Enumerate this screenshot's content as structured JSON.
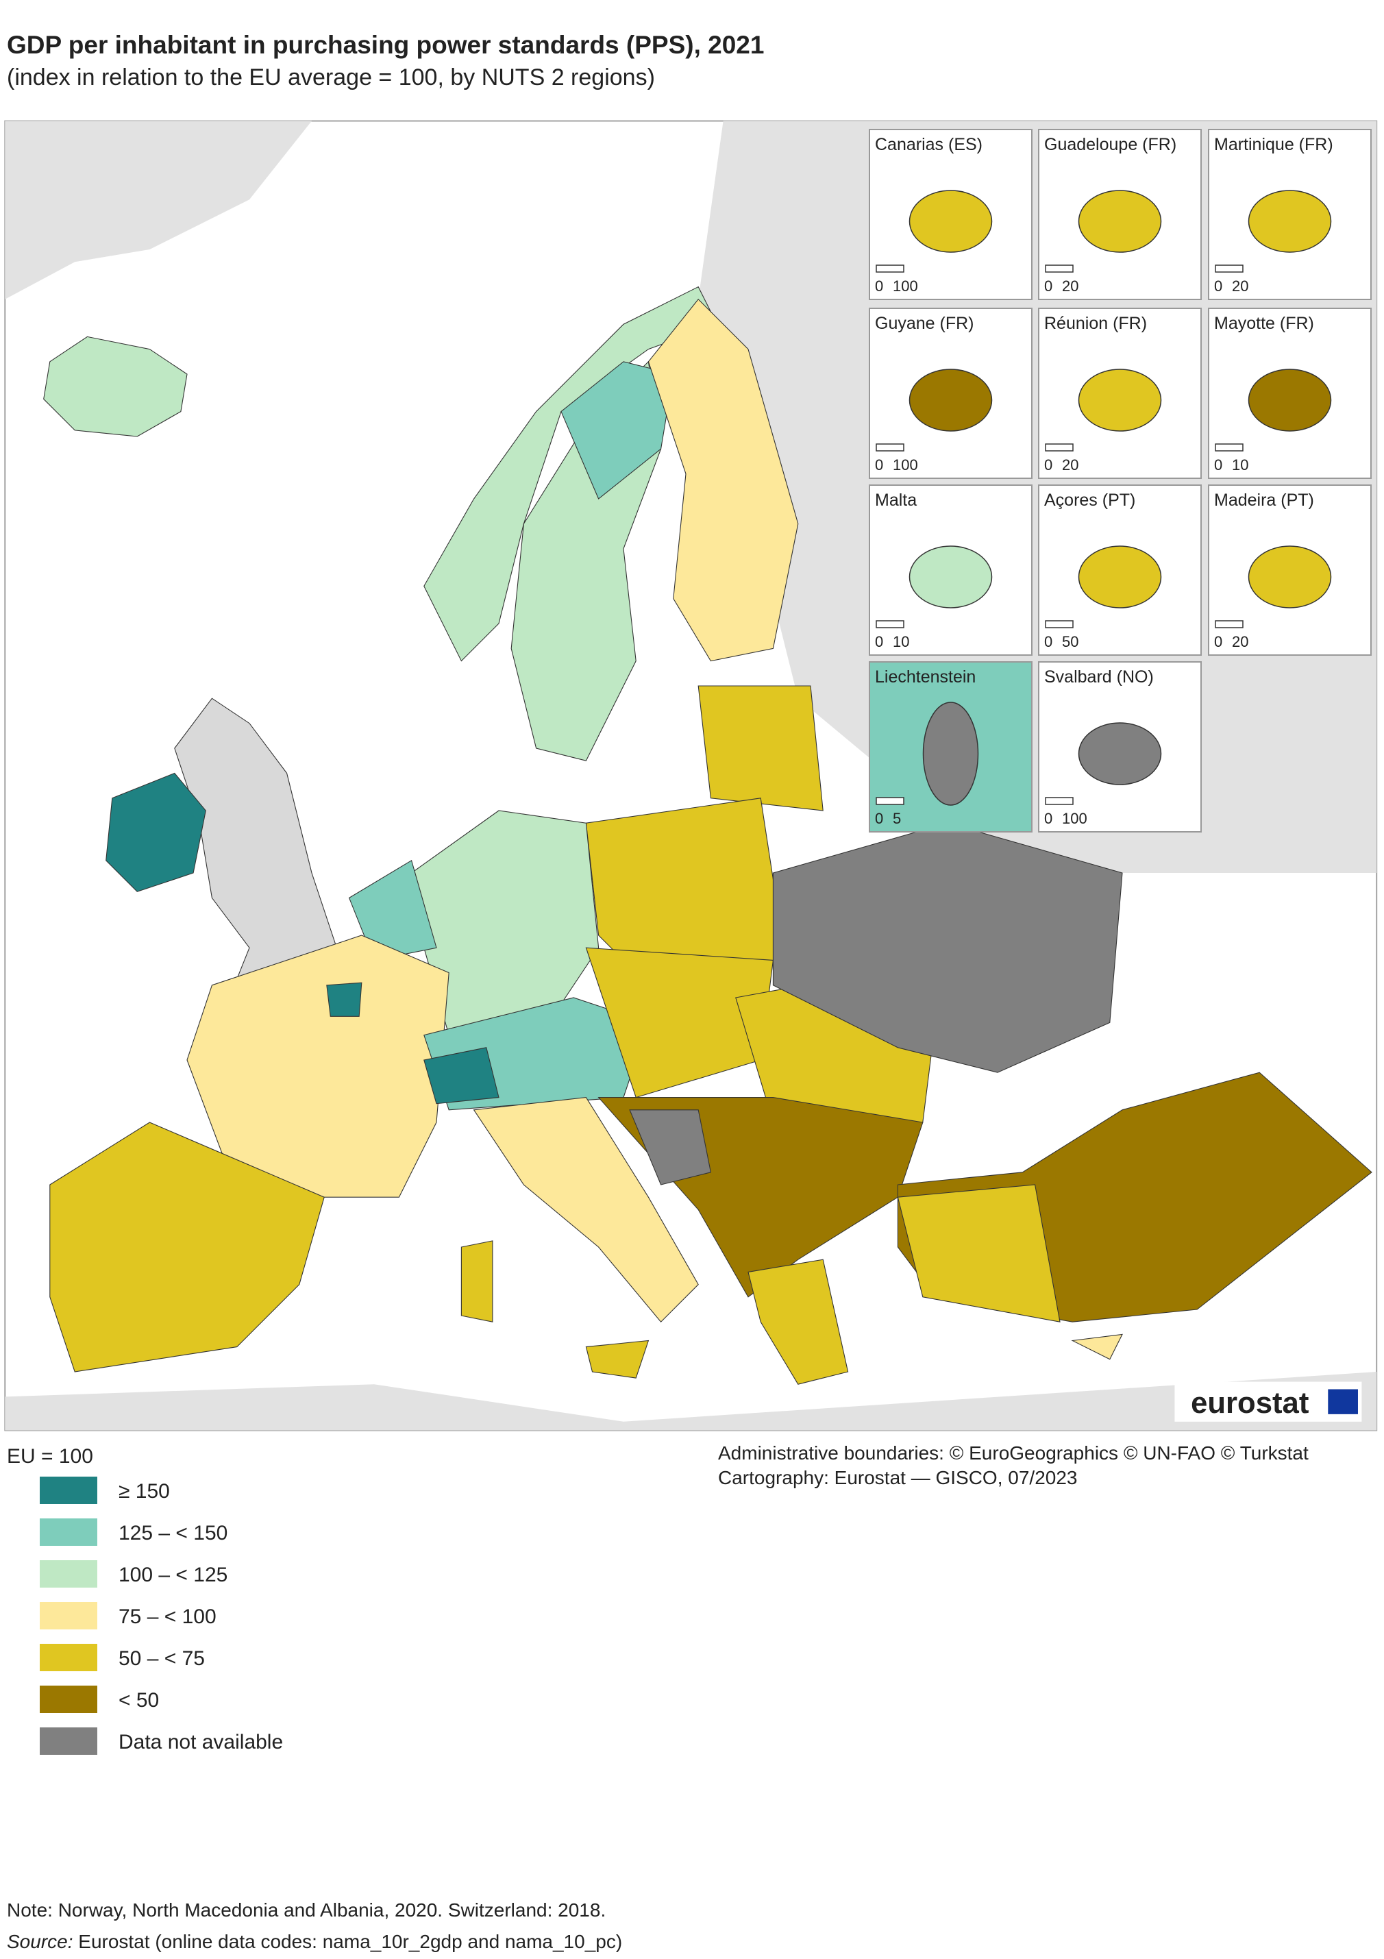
{
  "header": {
    "title": "GDP per inhabitant in purchasing power standards (PPS), 2021",
    "subtitle": "(index in relation to the EU average = 100, by NUTS 2 regions)"
  },
  "insets": [
    {
      "name": "Canarias (ES)",
      "scale": [
        "0",
        "100"
      ],
      "color": "#e0c621"
    },
    {
      "name": "Guadeloupe (FR)",
      "scale": [
        "0",
        "20"
      ],
      "color": "#e0c621"
    },
    {
      "name": "Martinique (FR)",
      "scale": [
        "0",
        "20"
      ],
      "color": "#e0c621"
    },
    {
      "name": "Guyane (FR)",
      "scale": [
        "0",
        "100"
      ],
      "color": "#9b7800"
    },
    {
      "name": "Réunion (FR)",
      "scale": [
        "0",
        "20"
      ],
      "color": "#e0c621"
    },
    {
      "name": "Mayotte (FR)",
      "scale": [
        "0",
        "10"
      ],
      "color": "#9b7800"
    },
    {
      "name": "Malta",
      "scale": [
        "0",
        "10"
      ],
      "color": "#bfe8c4"
    },
    {
      "name": "Açores (PT)",
      "scale": [
        "0",
        "50"
      ],
      "color": "#e0c621"
    },
    {
      "name": "Madeira (PT)",
      "scale": [
        "0",
        "20"
      ],
      "color": "#e0c621"
    },
    {
      "name": "Liechtenstein",
      "scale": [
        "0",
        "5"
      ],
      "color": "#808080"
    },
    {
      "name": "Svalbard (NO)",
      "scale": [
        "0",
        "100"
      ],
      "color": "#808080"
    }
  ],
  "logo": "eurostat",
  "legend": {
    "title": "EU = 100",
    "items": [
      {
        "label": "≥ 150",
        "color": "#1f8282"
      },
      {
        "label": "125 – < 150",
        "color": "#7ecdbb"
      },
      {
        "label": "100 – < 125",
        "color": "#bfe8c4"
      },
      {
        "label": "75 – < 100",
        "color": "#fde89a"
      },
      {
        "label": "50 – < 75",
        "color": "#e0c621"
      },
      {
        "label": "< 50",
        "color": "#9b7800"
      },
      {
        "label": "Data not available",
        "color": "#808080"
      }
    ]
  },
  "credits": [
    "Administrative boundaries: © EuroGeographics © UN-FAO © Turkstat",
    "Cartography: Eurostat — GISCO, 07/2023"
  ],
  "notes": {
    "note": "Note: Norway, North Macedonia and Albania, 2020. Switzerland: 2018.",
    "source_label": "Source:",
    "source": " Eurostat (online data codes: nama_10r_2gdp and nama_10_pc)"
  }
}
